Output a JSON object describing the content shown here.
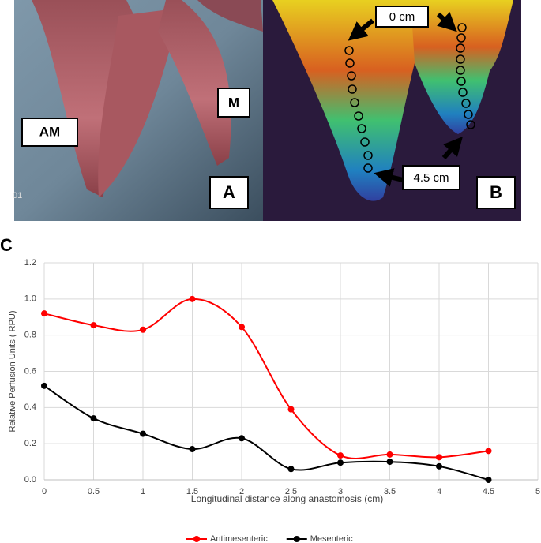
{
  "figure": {
    "panel_a": {
      "label": "A",
      "tag_am": "AM",
      "tag_m": "M",
      "timestamp": "01"
    },
    "panel_b": {
      "label": "B",
      "tag_start": "0 cm",
      "tag_end": "4.5 cm"
    },
    "panel_c": {
      "label": "C"
    }
  },
  "chart_data": {
    "type": "line",
    "x_label": "Longitudinal distance along anastomosis (cm)",
    "y_label": "Relative Perfusion Units ( RPU)",
    "x": [
      0,
      0.5,
      1,
      1.5,
      2,
      2.5,
      3,
      3.5,
      4,
      4.5
    ],
    "series": [
      {
        "name": "Antimesenteric",
        "color": "#ff0000",
        "values": [
          0.92,
          0.855,
          0.83,
          1.0,
          0.845,
          0.39,
          0.135,
          0.14,
          0.125,
          0.16
        ]
      },
      {
        "name": "Mesenteric",
        "color": "#000000",
        "values": [
          0.52,
          0.34,
          0.255,
          0.17,
          0.23,
          0.06,
          0.095,
          0.1,
          0.075,
          0.0
        ]
      }
    ],
    "xlim": [
      0,
      5
    ],
    "xticks": [
      0,
      0.5,
      1,
      1.5,
      2,
      2.5,
      3,
      3.5,
      4,
      4.5,
      5
    ],
    "ylim": [
      0,
      1.2
    ],
    "yticks": [
      {
        "value": 0,
        "label": "0.0"
      },
      0.2,
      0.4,
      0.6,
      0.8,
      {
        "value": 1,
        "label": "1.0"
      },
      1.2
    ],
    "grid": true,
    "smooth": true,
    "legend": "bottom"
  }
}
